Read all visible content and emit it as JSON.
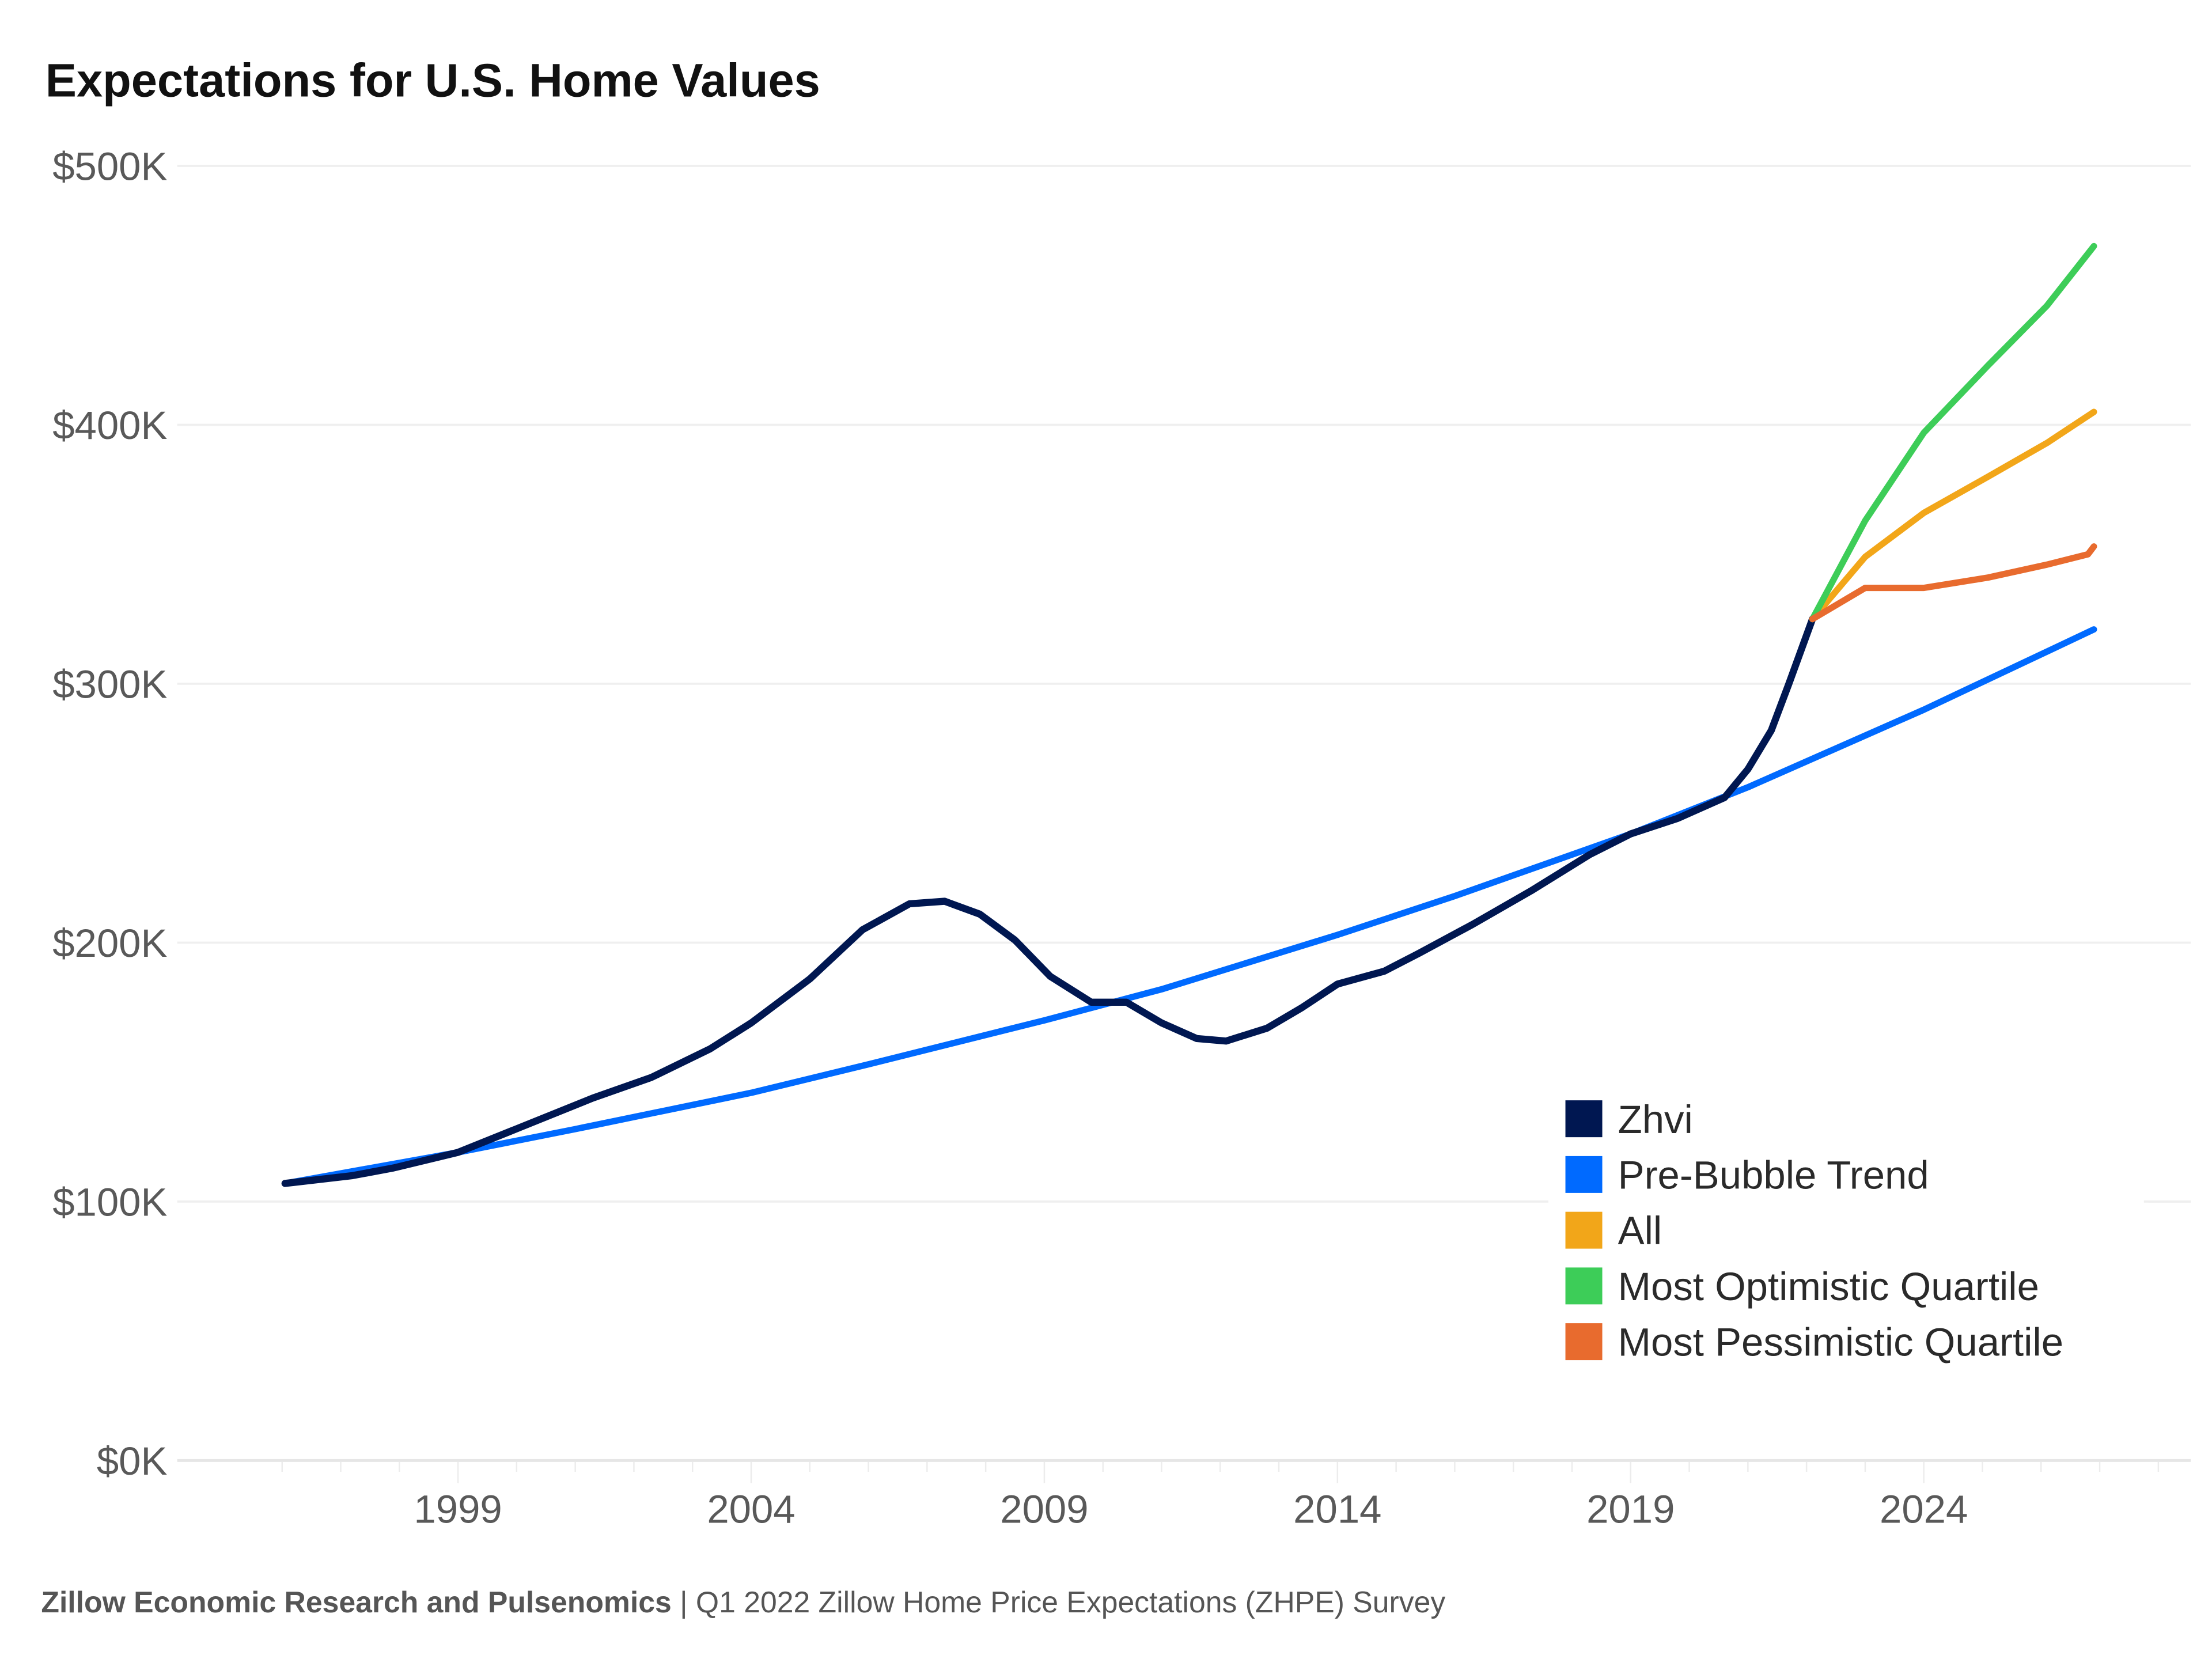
{
  "chart_data": {
    "type": "line",
    "title": "Expectations for U.S. Home Values",
    "xlabel": "",
    "ylabel": "",
    "xlim": [
      1995,
      2028
    ],
    "ylim": [
      0,
      500000
    ],
    "x_ticks": [
      1999,
      2004,
      2009,
      2014,
      2019,
      2024
    ],
    "y_ticks": [
      {
        "value": 0,
        "label": "$0K"
      },
      {
        "value": 100000,
        "label": "$100K"
      },
      {
        "value": 200000,
        "label": "$200K"
      },
      {
        "value": 300000,
        "label": "$300K"
      },
      {
        "value": 400000,
        "label": "$400K"
      },
      {
        "value": 500000,
        "label": "$500K"
      }
    ],
    "grid": true,
    "legend_position": "bottom-right",
    "series": [
      {
        "name": "Zhvi",
        "color": "#001751",
        "x": [
          1996.05,
          1997.2,
          1997.9,
          1999,
          2000.1,
          2001.3,
          2002.3,
          2003.3,
          2004,
          2005,
          2005.9,
          2006.7,
          2007.3,
          2007.9,
          2008.5,
          2009.1,
          2009.8,
          2010.4,
          2011,
          2011.6,
          2012.1,
          2012.8,
          2013.4,
          2014,
          2014.8,
          2015.4,
          2016.3,
          2017.3,
          2018.3,
          2019,
          2019.8,
          2020.6,
          2021,
          2021.4,
          2021.7,
          2022.1
        ],
        "y": [
          107000,
          110000,
          113000,
          119000,
          129000,
          140000,
          148000,
          159000,
          169000,
          186000,
          205000,
          215000,
          216000,
          211000,
          201000,
          187000,
          177000,
          177000,
          169000,
          163000,
          162000,
          167000,
          175000,
          184000,
          189000,
          196000,
          207000,
          220000,
          234000,
          242000,
          248000,
          256000,
          267000,
          282000,
          300000,
          325000
        ]
      },
      {
        "name": "Pre-Bubble Trend",
        "color": "#006AFF",
        "x": [
          1996.05,
          1999,
          2001,
          2004,
          2006,
          2009,
          2011,
          2014,
          2016,
          2019,
          2021,
          2024,
          2026.9
        ],
        "y": [
          107000,
          119000,
          128000,
          142000,
          153000,
          170000,
          182000,
          203000,
          218000,
          242000,
          260000,
          290000,
          321000
        ]
      },
      {
        "name": "All",
        "color": "#F2A619",
        "x": [
          2022.1,
          2023,
          2024,
          2025.1,
          2026.1,
          2026.9
        ],
        "y": [
          325000,
          349000,
          366000,
          380000,
          393000,
          405000
        ]
      },
      {
        "name": "Most Optimistic Quartile",
        "color": "#3DCD58",
        "x": [
          2022.1,
          2023,
          2024,
          2025.1,
          2026.1,
          2026.9
        ],
        "y": [
          325000,
          363000,
          397000,
          423000,
          446000,
          469000
        ]
      },
      {
        "name": "Most Pessimistic Quartile",
        "color": "#E86B2E",
        "x": [
          2022.1,
          2023,
          2024,
          2025.1,
          2026.1,
          2026.8,
          2026.9
        ],
        "y": [
          325000,
          337000,
          337000,
          341000,
          346000,
          350000,
          353000
        ]
      }
    ]
  },
  "footer": {
    "source": "Zillow Economic Research and Pulsenomics",
    "separator": " | ",
    "note": "Q1 2022 Zillow Home Price Expectations (ZHPE) Survey"
  }
}
